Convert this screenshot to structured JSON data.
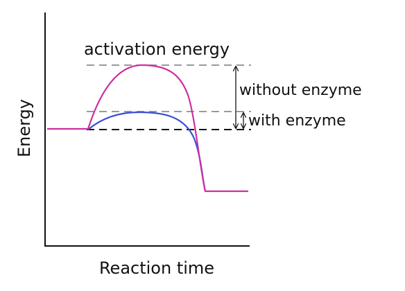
{
  "annotations": {
    "activation": "activation energy",
    "without": "without enzyme",
    "with": "with enzyme"
  },
  "axes": {
    "y_label": "Energy",
    "x_label": "Reaction time"
  }
}
